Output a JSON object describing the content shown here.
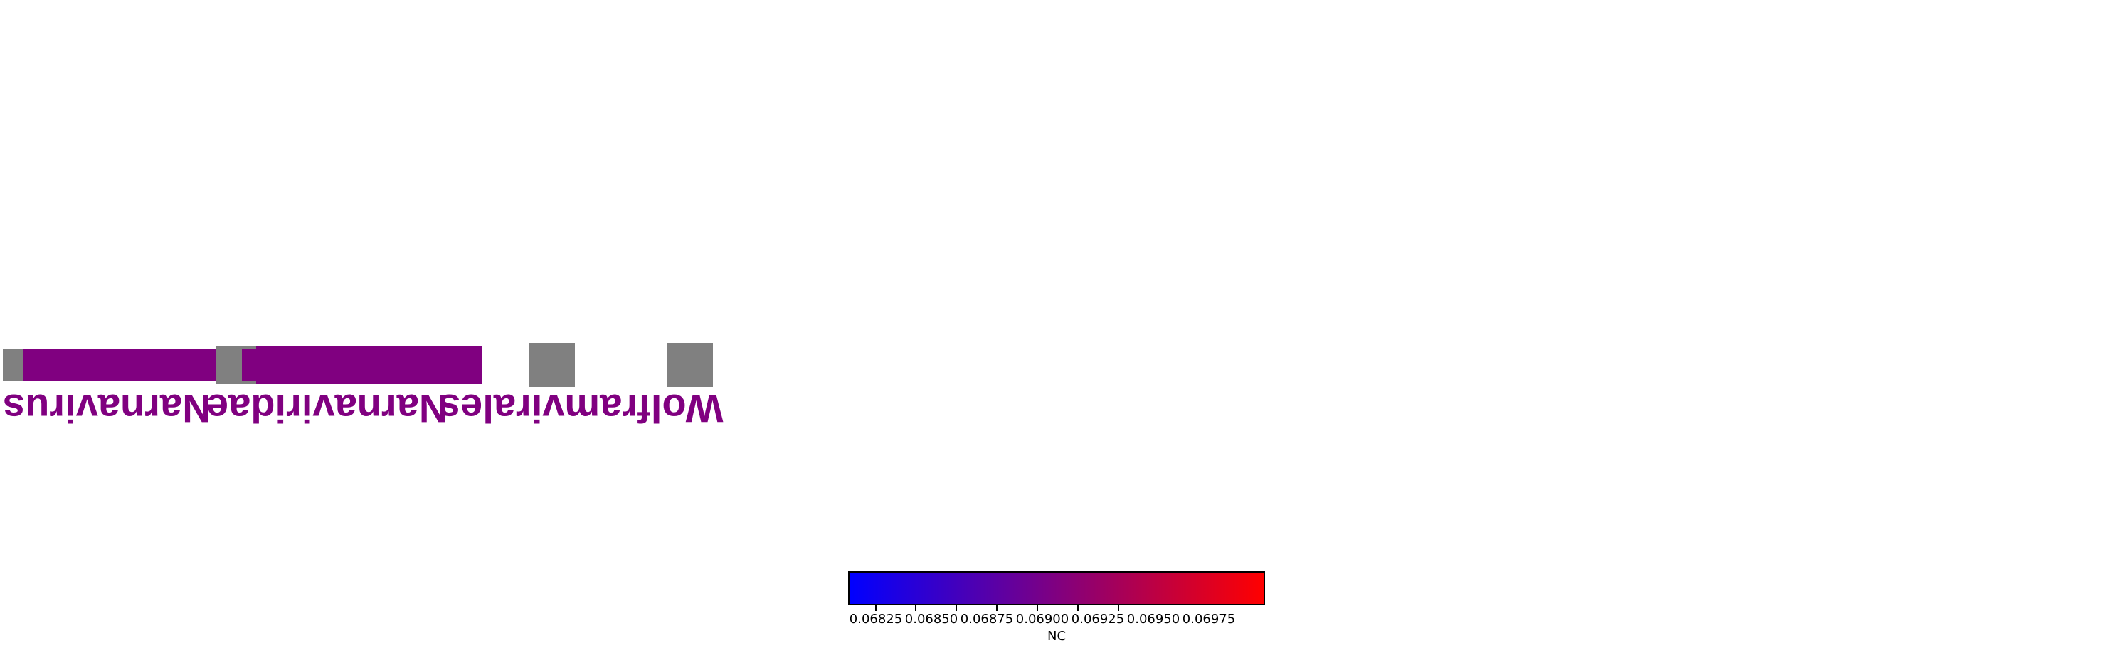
{
  "colors": {
    "taxon_fill": "#800080",
    "missing_fill": "#808080",
    "colormap_low": "#0000ff",
    "colormap_mid": "#800080",
    "colormap_high": "#ff0000"
  },
  "labels": {
    "genus": "Narnavirus",
    "family": "Narnaviridae",
    "order": "Wolframvirales"
  },
  "colorbar": {
    "label": "NC",
    "ticks": [
      "0.06825",
      "0.06850",
      "0.06875",
      "0.06900",
      "0.06925",
      "0.06950",
      "0.06975"
    ]
  }
}
